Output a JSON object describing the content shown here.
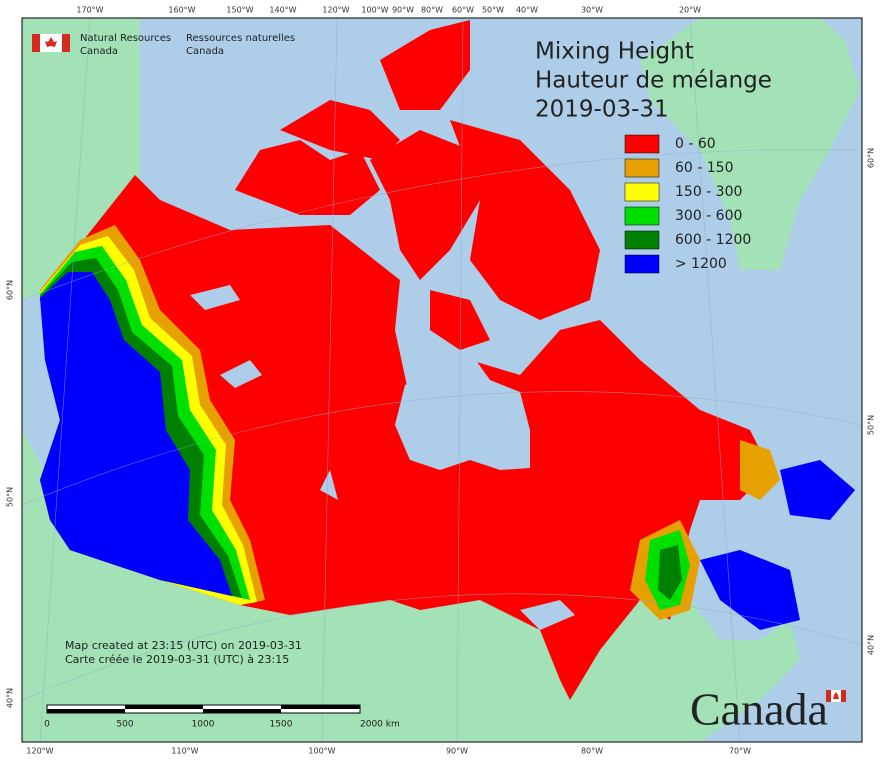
{
  "header": {
    "org_en": [
      "Natural Resources",
      "Canada"
    ],
    "org_fr": [
      "Ressources naturelles",
      "Canada"
    ]
  },
  "title": [
    "Mixing Height",
    "Hauteur de mélange",
    "2019-03-31"
  ],
  "legend": [
    {
      "label": "0 - 60",
      "color": "#ff0000"
    },
    {
      "label": "60 - 150",
      "color": "#e6a100"
    },
    {
      "label": "150 - 300",
      "color": "#ffff00"
    },
    {
      "label": "300 - 600",
      "color": "#00e000"
    },
    {
      "label": "600 - 1200",
      "color": "#008000"
    },
    {
      "label": "> 1200",
      "color": "#0000ff"
    }
  ],
  "footnote": [
    "Map created at 23:15 (UTC) on 2019-03-31",
    "Carte créée le 2019-03-31 (UTC) à 23:15"
  ],
  "scale_labels": [
    "0",
    "500",
    "1000",
    "1500",
    "2000  km"
  ],
  "graticule": {
    "top": [
      "170°W",
      "160°W",
      "150°W",
      "140°W",
      "120°W",
      "100°W",
      "90°W",
      "80°W",
      "60°W",
      "50°W",
      "40°W",
      "30°W",
      "20°W"
    ],
    "bottom": [
      "120°W",
      "110°W",
      "100°W",
      "90°W",
      "80°W",
      "70°W"
    ],
    "left": [
      "60°N",
      "50°N",
      "40°N"
    ],
    "right": [
      "60°N",
      "50°N",
      "40°N"
    ]
  },
  "wordmark": "Canada"
}
